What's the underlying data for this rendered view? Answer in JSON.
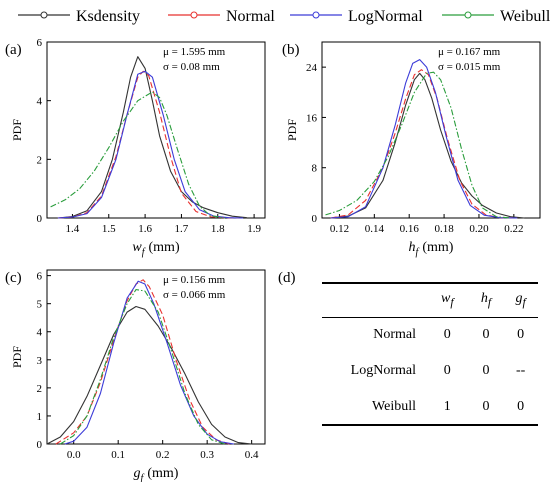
{
  "colors": {
    "Ksdensity": "#333333",
    "Normal": "#e8312f",
    "LogNormal": "#3c3cd8",
    "Weibull": "#2a9d3c"
  },
  "legend": {
    "entries": [
      "Ksdensity",
      "Normal",
      "LogNormal",
      "Weibull"
    ]
  },
  "axis_label_ylabel": "PDF",
  "chart_data": [
    {
      "type": "line",
      "panel": "(a)",
      "letter": "(a)",
      "xlabel_sym": "w",
      "xlabel_sub": "f",
      "xlabel_unit": "(mm)",
      "ylabel": "PDF",
      "xlim": [
        1.33,
        1.93
      ],
      "ylim": [
        0,
        6
      ],
      "xticks": [
        1.4,
        1.5,
        1.6,
        1.7,
        1.8,
        1.9
      ],
      "yticks": [
        0,
        2,
        4,
        6
      ],
      "xtick_labels": [
        "1.4",
        "1.5",
        "1.6",
        "1.7",
        "1.8",
        "1.9"
      ],
      "ytick_labels": [
        "0",
        "2",
        "4",
        "6"
      ],
      "annotation": {
        "mu": "μ = 1.595 mm",
        "sigma": "σ = 0.08 mm"
      },
      "series": [
        {
          "name": "Ksdensity",
          "x": [
            1.36,
            1.4,
            1.44,
            1.48,
            1.51,
            1.54,
            1.56,
            1.58,
            1.6,
            1.62,
            1.64,
            1.67,
            1.7,
            1.73,
            1.76,
            1.8,
            1.84,
            1.88
          ],
          "y": [
            0.0,
            0.05,
            0.25,
            0.9,
            2.0,
            3.6,
            4.8,
            5.5,
            5.1,
            4.0,
            2.8,
            1.6,
            0.9,
            0.55,
            0.35,
            0.18,
            0.06,
            0.01
          ]
        },
        {
          "name": "Normal",
          "x": [
            1.36,
            1.4,
            1.44,
            1.48,
            1.52,
            1.55,
            1.58,
            1.595,
            1.61,
            1.64,
            1.67,
            1.7,
            1.74,
            1.78,
            1.82,
            1.86
          ],
          "y": [
            0.0,
            0.03,
            0.18,
            0.75,
            2.1,
            3.5,
            4.8,
            5.0,
            4.85,
            3.6,
            2.1,
            0.85,
            0.22,
            0.04,
            0.01,
            0.0
          ]
        },
        {
          "name": "LogNormal",
          "x": [
            1.36,
            1.4,
            1.44,
            1.48,
            1.52,
            1.55,
            1.58,
            1.6,
            1.62,
            1.65,
            1.68,
            1.71,
            1.75,
            1.79,
            1.83,
            1.87
          ],
          "y": [
            0.0,
            0.03,
            0.15,
            0.7,
            2.0,
            3.5,
            4.9,
            5.0,
            4.8,
            3.5,
            2.0,
            0.9,
            0.28,
            0.06,
            0.01,
            0.0
          ]
        },
        {
          "name": "Weibull",
          "x": [
            1.34,
            1.38,
            1.42,
            1.46,
            1.5,
            1.54,
            1.58,
            1.62,
            1.64,
            1.66,
            1.69,
            1.72,
            1.75,
            1.78,
            1.82
          ],
          "y": [
            0.38,
            0.62,
            1.0,
            1.6,
            2.4,
            3.3,
            4.0,
            4.3,
            4.1,
            3.5,
            2.3,
            1.15,
            0.4,
            0.08,
            0.0
          ]
        }
      ]
    },
    {
      "type": "line",
      "panel": "(b)",
      "letter": "(b)",
      "xlabel_sym": "h",
      "xlabel_sub": "f",
      "xlabel_unit": "(mm)",
      "ylabel": "PDF",
      "xlim": [
        0.11,
        0.235
      ],
      "ylim": [
        0,
        28
      ],
      "xticks": [
        0.12,
        0.14,
        0.16,
        0.18,
        0.2,
        0.22
      ],
      "yticks": [
        0,
        8,
        16,
        24
      ],
      "xtick_labels": [
        "0.12",
        "0.14",
        "0.16",
        "0.18",
        "0.20",
        "0.22"
      ],
      "ytick_labels": [
        "0",
        "8",
        "16",
        "24"
      ],
      "annotation": {
        "mu": "μ = 0.167 mm",
        "sigma": "σ = 0.015 mm"
      },
      "series": [
        {
          "name": "Ksdensity",
          "x": [
            0.115,
            0.125,
            0.135,
            0.145,
            0.152,
            0.158,
            0.163,
            0.166,
            0.169,
            0.173,
            0.178,
            0.184,
            0.19,
            0.196,
            0.202,
            0.21,
            0.218,
            0.226
          ],
          "y": [
            0.0,
            0.3,
            1.6,
            6.0,
            12.0,
            18.0,
            22.0,
            23.0,
            22.0,
            19.0,
            14.0,
            9.0,
            5.6,
            3.5,
            2.0,
            0.8,
            0.2,
            0.0
          ]
        },
        {
          "name": "Normal",
          "x": [
            0.115,
            0.125,
            0.135,
            0.145,
            0.152,
            0.158,
            0.163,
            0.167,
            0.171,
            0.176,
            0.182,
            0.189,
            0.196,
            0.204,
            0.212,
            0.222
          ],
          "y": [
            0.0,
            0.5,
            2.8,
            8.0,
            13.5,
            19.0,
            22.8,
            23.6,
            22.8,
            19.0,
            12.5,
            6.0,
            2.2,
            0.5,
            0.05,
            0.0
          ]
        },
        {
          "name": "LogNormal",
          "x": [
            0.115,
            0.125,
            0.135,
            0.145,
            0.152,
            0.158,
            0.162,
            0.166,
            0.17,
            0.175,
            0.181,
            0.188,
            0.195,
            0.203,
            0.212,
            0.222
          ],
          "y": [
            0.0,
            0.2,
            1.8,
            8.0,
            14.8,
            21.5,
            24.6,
            25.2,
            24.0,
            20.0,
            13.2,
            6.0,
            2.0,
            0.45,
            0.05,
            0.0
          ]
        },
        {
          "name": "Weibull",
          "x": [
            0.112,
            0.12,
            0.13,
            0.14,
            0.148,
            0.156,
            0.163,
            0.17,
            0.174,
            0.178,
            0.184,
            0.19,
            0.196,
            0.202,
            0.21,
            0.218
          ],
          "y": [
            0.5,
            1.2,
            2.8,
            5.8,
            9.8,
            15.0,
            20.0,
            23.0,
            23.2,
            22.0,
            17.5,
            11.0,
            5.2,
            1.6,
            0.2,
            0.0
          ]
        }
      ]
    },
    {
      "type": "line",
      "panel": "(c)",
      "letter": "(c)",
      "xlabel_sym": "g",
      "xlabel_sub": "f",
      "xlabel_unit": "(mm)",
      "ylabel": "PDF",
      "xlim": [
        -0.06,
        0.43
      ],
      "ylim": [
        0,
        6.2
      ],
      "xticks": [
        0.0,
        0.1,
        0.2,
        0.3,
        0.4
      ],
      "yticks": [
        0,
        1,
        2,
        3,
        4,
        5,
        6
      ],
      "xtick_labels": [
        "0.0",
        "0.1",
        "0.2",
        "0.3",
        "0.4"
      ],
      "ytick_labels": [
        "0",
        "1",
        "2",
        "3",
        "4",
        "5",
        "6"
      ],
      "annotation": {
        "mu": "μ = 0.156 mm",
        "sigma": "σ = 0.066 mm"
      },
      "series": [
        {
          "name": "Ksdensity",
          "x": [
            -0.06,
            -0.03,
            0.0,
            0.03,
            0.06,
            0.09,
            0.12,
            0.14,
            0.16,
            0.19,
            0.22,
            0.25,
            0.28,
            0.31,
            0.34,
            0.37,
            0.4
          ],
          "y": [
            0.0,
            0.25,
            0.8,
            1.7,
            2.8,
            3.9,
            4.7,
            4.9,
            4.8,
            4.2,
            3.4,
            2.5,
            1.5,
            0.7,
            0.25,
            0.05,
            0.0
          ]
        },
        {
          "name": "Normal",
          "x": [
            -0.04,
            0.0,
            0.03,
            0.06,
            0.09,
            0.12,
            0.14,
            0.156,
            0.17,
            0.2,
            0.23,
            0.26,
            0.29,
            0.32,
            0.35
          ],
          "y": [
            0.0,
            0.4,
            1.0,
            2.2,
            3.7,
            5.1,
            5.7,
            5.85,
            5.6,
            4.6,
            3.0,
            1.6,
            0.6,
            0.15,
            0.0
          ]
        },
        {
          "name": "LogNormal",
          "x": [
            -0.02,
            0.0,
            0.03,
            0.06,
            0.09,
            0.12,
            0.145,
            0.16,
            0.18,
            0.21,
            0.24,
            0.27,
            0.3,
            0.33,
            0.36
          ],
          "y": [
            0.0,
            0.1,
            0.6,
            1.8,
            3.6,
            5.2,
            5.8,
            5.7,
            5.0,
            3.6,
            2.1,
            1.0,
            0.35,
            0.08,
            0.0
          ]
        },
        {
          "name": "Weibull",
          "x": [
            -0.03,
            0.0,
            0.03,
            0.06,
            0.09,
            0.12,
            0.14,
            0.16,
            0.19,
            0.22,
            0.25,
            0.28,
            0.31,
            0.34
          ],
          "y": [
            0.0,
            0.3,
            1.0,
            2.3,
            3.8,
            5.0,
            5.5,
            5.45,
            4.7,
            3.3,
            1.8,
            0.7,
            0.15,
            0.0
          ]
        }
      ]
    }
  ],
  "table": {
    "letter": "(d)",
    "headers": [
      {
        "sym": "w",
        "sub": "f"
      },
      {
        "sym": "h",
        "sub": "f"
      },
      {
        "sym": "g",
        "sub": "f"
      }
    ],
    "rows": [
      {
        "label": "Normal",
        "values": [
          "0",
          "0",
          "0"
        ]
      },
      {
        "label": "LogNormal",
        "values": [
          "0",
          "0",
          "--"
        ]
      },
      {
        "label": "Weibull",
        "values": [
          "1",
          "0",
          "0"
        ]
      }
    ]
  }
}
